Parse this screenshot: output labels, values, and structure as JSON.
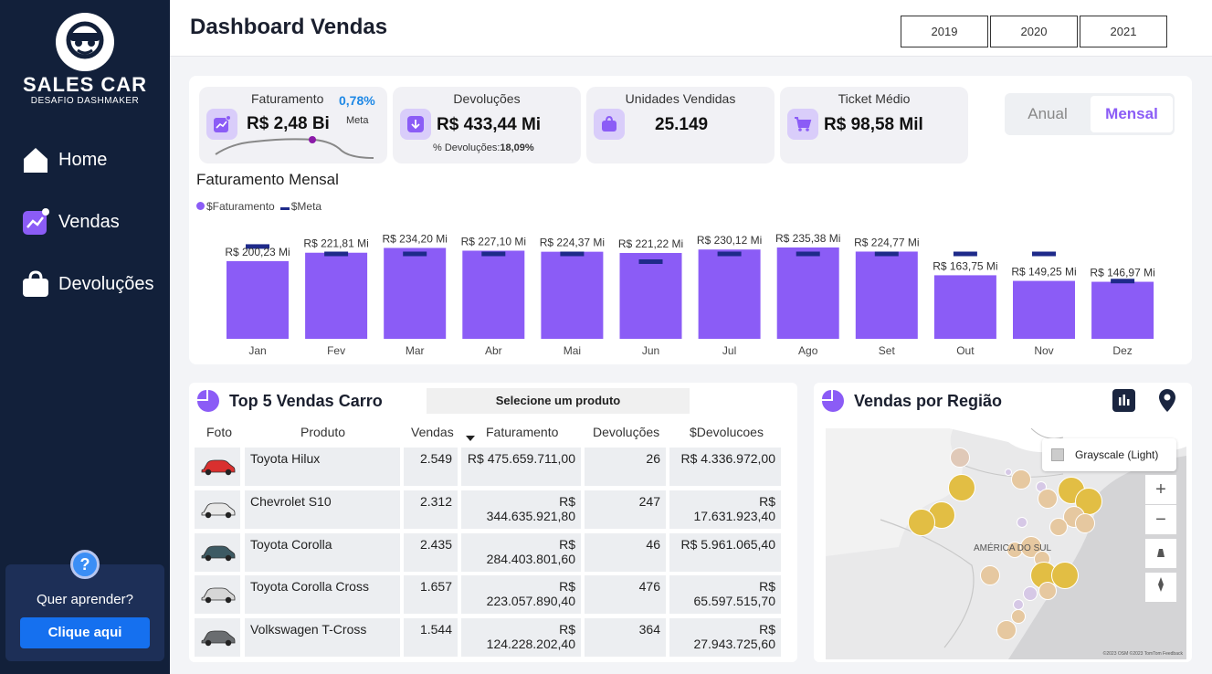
{
  "sidebar": {
    "logo_title": "SALES CAR",
    "logo_sub": "DESAFIO DASHMAKER",
    "nav": [
      {
        "label": "Home",
        "icon": "home-icon"
      },
      {
        "label": "Vendas",
        "icon": "trend-icon"
      },
      {
        "label": "Devoluções",
        "icon": "bag-icon"
      }
    ],
    "help_text": "Quer aprender?",
    "help_button": "Clique aqui"
  },
  "header": {
    "title": "Dashboard Vendas",
    "years": [
      "2019",
      "2020",
      "2021"
    ]
  },
  "kpis": {
    "faturamento": {
      "title": "Faturamento",
      "value": "R$ 2,48 Bi",
      "pct": "0,78%",
      "meta_label": "Meta",
      "icon": "trend-icon"
    },
    "devolucoes": {
      "title": "Devoluções",
      "value": "R$ 433,44 Mi",
      "sub_label": "% Devoluções:",
      "sub_value": "18,09%",
      "icon": "download-icon"
    },
    "unidades": {
      "title": "Unidades Vendidas",
      "value": "25.149",
      "icon": "bag-icon"
    },
    "ticket": {
      "title": "Ticket Médio",
      "value": "R$ 98,58 Mil",
      "icon": "cart-icon"
    }
  },
  "toggle": {
    "options": [
      "Anual",
      "Mensal"
    ],
    "selected": "Mensal"
  },
  "chart_data": {
    "type": "bar",
    "title": "Faturamento Mensal",
    "legend": [
      "$Faturamento",
      "$Meta"
    ],
    "categories": [
      "Jan",
      "Fev",
      "Mar",
      "Abr",
      "Mai",
      "Jun",
      "Jul",
      "Ago",
      "Set",
      "Out",
      "Nov",
      "Dez"
    ],
    "series": [
      {
        "name": "$Faturamento",
        "values": [
          200.23,
          221.81,
          234.2,
          227.1,
          224.37,
          221.22,
          230.12,
          235.38,
          224.77,
          163.75,
          149.25,
          146.97
        ]
      },
      {
        "name": "$Meta",
        "values": [
          239,
          220,
          220,
          220,
          220,
          200,
          220,
          220,
          220,
          220,
          220,
          150
        ]
      }
    ],
    "labels": [
      "R$ 200,23 Mi",
      "R$ 221,81 Mi",
      "R$ 234,20 Mi",
      "R$ 227,10 Mi",
      "R$ 224,37 Mi",
      "R$ 221,22 Mi",
      "R$ 230,12 Mi",
      "R$ 235,38 Mi",
      "R$ 224,77 Mi",
      "R$ 163,75 Mi",
      "R$ 149,25 Mi",
      "R$ 146,97 Mi"
    ],
    "colors": {
      "bar": "#8b5cf6",
      "meta": "#1e2a8a"
    },
    "legend_position": "top-left",
    "grid": false
  },
  "table": {
    "title": "Top 5 Vendas Carro",
    "select_label": "Selecione um produto",
    "columns": [
      "Foto",
      "Produto",
      "Vendas",
      "Faturamento",
      "Devoluções",
      "$Devolucoes"
    ],
    "rows": [
      {
        "produto": "Toyota Hilux",
        "vendas": "2.549",
        "faturamento": "R$ 475.659.711,00",
        "devolucoes": "26",
        "valor_dev": "R$ 4.336.972,00",
        "car_color": "#d9302f"
      },
      {
        "produto": "Chevrolet S10",
        "vendas": "2.312",
        "faturamento": "R$ 344.635.921,80",
        "devolucoes": "247",
        "valor_dev": "R$ 17.631.923,40",
        "car_color": "#e8e8e8"
      },
      {
        "produto": "Toyota Corolla",
        "vendas": "2.435",
        "faturamento": "R$ 284.403.801,60",
        "devolucoes": "46",
        "valor_dev": "R$ 5.961.065,40",
        "car_color": "#3d5a63"
      },
      {
        "produto": "Toyota Corolla Cross",
        "vendas": "1.657",
        "faturamento": "R$ 223.057.890,40",
        "devolucoes": "476",
        "valor_dev": "R$ 65.597.515,70",
        "car_color": "#d6d6d6"
      },
      {
        "produto": "Volkswagen T-Cross",
        "vendas": "1.544",
        "faturamento": "R$ 124.228.202,40",
        "devolucoes": "364",
        "valor_dev": "R$ 27.943.725,60",
        "car_color": "#6a6d70"
      }
    ]
  },
  "map": {
    "title": "Vendas por Região",
    "style_label": "Grayscale (Light)",
    "region_label": "AMÉRICA DO SUL",
    "zoom_in": "+",
    "zoom_out": "−",
    "copyright": "©2023 OSM ©2023 TomTom Feedback"
  }
}
